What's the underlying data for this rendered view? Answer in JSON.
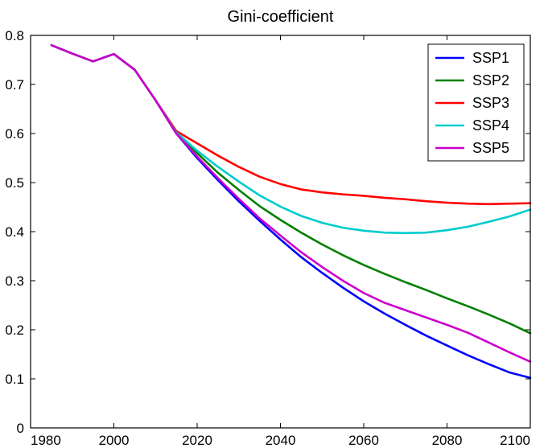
{
  "chart_data": {
    "type": "line",
    "title": "Gini-coefficient",
    "xlabel": "",
    "ylabel": "",
    "xlim": [
      1980,
      2100
    ],
    "ylim": [
      0,
      0.8
    ],
    "xticks": [
      1980,
      2000,
      2020,
      2040,
      2060,
      2080,
      2100
    ],
    "yticks": [
      0,
      0.1,
      0.2,
      0.3,
      0.4,
      0.5,
      0.6,
      0.7,
      0.8
    ],
    "xtick_labels": [
      "1980",
      "2000",
      "2020",
      "2040",
      "2060",
      "2080",
      "2100"
    ],
    "ytick_labels": [
      "0",
      "0.1",
      "0.2",
      "0.3",
      "0.4",
      "0.5",
      "0.6",
      "0.7",
      "0.8"
    ],
    "grid": false,
    "legend_position": "top-right",
    "series": [
      {
        "name": "SSP1",
        "color": "#0000ff",
        "points": [
          [
            1985,
            0.78
          ],
          [
            1990,
            0.763
          ],
          [
            1995,
            0.747
          ],
          [
            2000,
            0.762
          ],
          [
            2005,
            0.73
          ],
          [
            2010,
            0.668
          ],
          [
            2015,
            0.6
          ],
          [
            2020,
            0.55
          ],
          [
            2025,
            0.505
          ],
          [
            2030,
            0.462
          ],
          [
            2035,
            0.422
          ],
          [
            2040,
            0.384
          ],
          [
            2045,
            0.348
          ],
          [
            2050,
            0.316
          ],
          [
            2055,
            0.286
          ],
          [
            2060,
            0.258
          ],
          [
            2065,
            0.233
          ],
          [
            2070,
            0.21
          ],
          [
            2075,
            0.188
          ],
          [
            2080,
            0.168
          ],
          [
            2085,
            0.148
          ],
          [
            2090,
            0.13
          ],
          [
            2095,
            0.113
          ],
          [
            2100,
            0.102
          ]
        ]
      },
      {
        "name": "SSP2",
        "color": "#008000",
        "points": [
          [
            1985,
            0.78
          ],
          [
            1990,
            0.763
          ],
          [
            1995,
            0.747
          ],
          [
            2000,
            0.762
          ],
          [
            2005,
            0.73
          ],
          [
            2010,
            0.668
          ],
          [
            2015,
            0.602
          ],
          [
            2020,
            0.56
          ],
          [
            2025,
            0.52
          ],
          [
            2030,
            0.485
          ],
          [
            2035,
            0.452
          ],
          [
            2040,
            0.424
          ],
          [
            2045,
            0.398
          ],
          [
            2050,
            0.374
          ],
          [
            2055,
            0.352
          ],
          [
            2060,
            0.332
          ],
          [
            2065,
            0.314
          ],
          [
            2070,
            0.297
          ],
          [
            2075,
            0.281
          ],
          [
            2080,
            0.264
          ],
          [
            2085,
            0.248
          ],
          [
            2090,
            0.231
          ],
          [
            2095,
            0.213
          ],
          [
            2100,
            0.193
          ]
        ]
      },
      {
        "name": "SSP3",
        "color": "#ff0000",
        "points": [
          [
            1985,
            0.78
          ],
          [
            1990,
            0.763
          ],
          [
            1995,
            0.747
          ],
          [
            2000,
            0.762
          ],
          [
            2005,
            0.73
          ],
          [
            2010,
            0.668
          ],
          [
            2015,
            0.605
          ],
          [
            2020,
            0.58
          ],
          [
            2025,
            0.555
          ],
          [
            2030,
            0.532
          ],
          [
            2035,
            0.512
          ],
          [
            2040,
            0.497
          ],
          [
            2045,
            0.486
          ],
          [
            2050,
            0.48
          ],
          [
            2055,
            0.476
          ],
          [
            2060,
            0.473
          ],
          [
            2065,
            0.469
          ],
          [
            2070,
            0.466
          ],
          [
            2075,
            0.462
          ],
          [
            2080,
            0.459
          ],
          [
            2085,
            0.457
          ],
          [
            2090,
            0.456
          ],
          [
            2095,
            0.457
          ],
          [
            2100,
            0.458
          ]
        ]
      },
      {
        "name": "SSP4",
        "color": "#00cccc",
        "points": [
          [
            1985,
            0.78
          ],
          [
            1990,
            0.763
          ],
          [
            1995,
            0.747
          ],
          [
            2000,
            0.762
          ],
          [
            2005,
            0.73
          ],
          [
            2010,
            0.668
          ],
          [
            2015,
            0.602
          ],
          [
            2020,
            0.565
          ],
          [
            2025,
            0.532
          ],
          [
            2030,
            0.502
          ],
          [
            2035,
            0.474
          ],
          [
            2040,
            0.451
          ],
          [
            2045,
            0.432
          ],
          [
            2050,
            0.418
          ],
          [
            2055,
            0.408
          ],
          [
            2060,
            0.402
          ],
          [
            2065,
            0.398
          ],
          [
            2070,
            0.397
          ],
          [
            2075,
            0.398
          ],
          [
            2080,
            0.403
          ],
          [
            2085,
            0.41
          ],
          [
            2090,
            0.42
          ],
          [
            2095,
            0.431
          ],
          [
            2100,
            0.445
          ]
        ]
      },
      {
        "name": "SSP5",
        "color": "#cc00cc",
        "points": [
          [
            1985,
            0.78
          ],
          [
            1990,
            0.763
          ],
          [
            1995,
            0.747
          ],
          [
            2000,
            0.762
          ],
          [
            2005,
            0.73
          ],
          [
            2010,
            0.668
          ],
          [
            2015,
            0.6
          ],
          [
            2020,
            0.553
          ],
          [
            2025,
            0.509
          ],
          [
            2030,
            0.467
          ],
          [
            2035,
            0.427
          ],
          [
            2040,
            0.392
          ],
          [
            2045,
            0.358
          ],
          [
            2050,
            0.328
          ],
          [
            2055,
            0.3
          ],
          [
            2060,
            0.275
          ],
          [
            2065,
            0.255
          ],
          [
            2070,
            0.24
          ],
          [
            2075,
            0.225
          ],
          [
            2080,
            0.21
          ],
          [
            2085,
            0.194
          ],
          [
            2090,
            0.174
          ],
          [
            2095,
            0.154
          ],
          [
            2100,
            0.135
          ]
        ]
      }
    ]
  }
}
